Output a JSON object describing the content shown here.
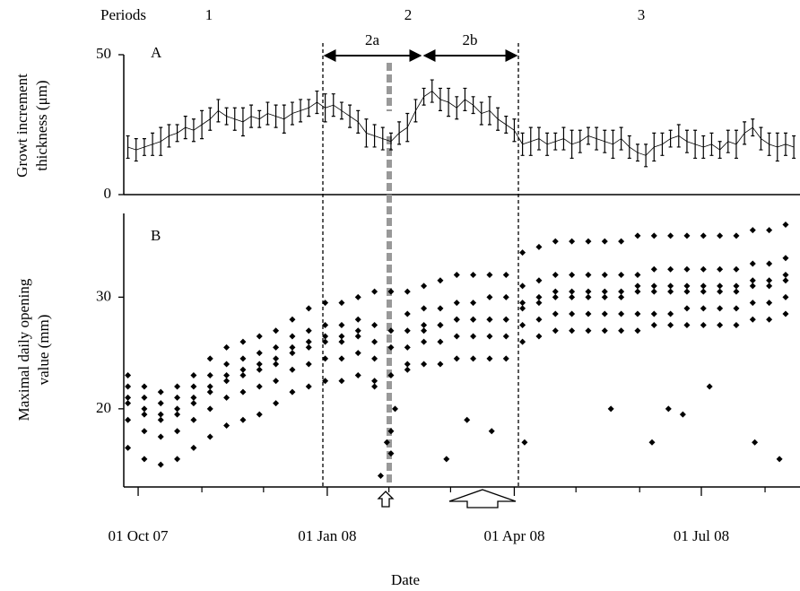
{
  "chart_data": [
    {
      "type": "errorbar",
      "panel_label": "A",
      "period_label": "Periods",
      "periods": [
        "1",
        "2",
        "3"
      ],
      "subperiods": [
        "2a",
        "2b"
      ],
      "ylabel": [
        "Growt increment",
        "thickness (μm)"
      ],
      "color": "#000000",
      "xlim": [
        -7,
        322
      ],
      "ylim": [
        0,
        50
      ],
      "yticks": [
        0,
        50
      ],
      "x": [
        -5,
        -1,
        3,
        7,
        11,
        15,
        19,
        23,
        27,
        31,
        35,
        39,
        43,
        47,
        51,
        55,
        59,
        63,
        67,
        71,
        75,
        79,
        83,
        87,
        91,
        95,
        99,
        103,
        107,
        111,
        115,
        119,
        123,
        127,
        131,
        135,
        139,
        143,
        147,
        151,
        155,
        159,
        163,
        167,
        171,
        175,
        179,
        183,
        187,
        191,
        195,
        199,
        203,
        207,
        211,
        215,
        219,
        223,
        227,
        231,
        235,
        239,
        243,
        247,
        251,
        255,
        259,
        263,
        267,
        271,
        275,
        279,
        283,
        287,
        291,
        295,
        299,
        303,
        307,
        311,
        315,
        319
      ],
      "values": [
        17,
        16,
        17,
        18,
        19,
        21,
        22,
        24,
        23,
        25,
        27,
        30,
        28,
        27,
        26,
        28,
        27,
        29,
        28,
        27,
        29,
        30,
        31,
        33,
        31,
        32,
        30,
        28,
        26,
        22,
        21,
        20,
        19,
        22,
        24,
        30,
        35,
        37,
        34,
        33,
        31,
        34,
        32,
        29,
        30,
        27,
        25,
        23,
        18,
        19,
        20,
        18,
        19,
        20,
        18,
        19,
        21,
        20,
        19,
        18,
        20,
        17,
        15,
        14,
        17,
        18,
        20,
        21,
        19,
        18,
        17,
        18,
        16,
        19,
        18,
        22,
        24,
        20,
        18,
        17,
        18,
        17
      ],
      "errors": [
        4,
        4,
        3,
        4,
        5,
        4,
        3,
        4,
        4,
        5,
        4,
        4,
        3,
        4,
        5,
        4,
        3,
        4,
        4,
        5,
        4,
        4,
        3,
        4,
        5,
        4,
        3,
        4,
        4,
        5,
        4,
        4,
        3,
        4,
        5,
        4,
        3,
        4,
        4,
        5,
        4,
        4,
        3,
        4,
        5,
        4,
        3,
        4,
        4,
        5,
        4,
        4,
        3,
        4,
        5,
        4,
        3,
        4,
        4,
        5,
        4,
        4,
        3,
        4,
        5,
        4,
        3,
        4,
        4,
        5,
        4,
        4,
        3,
        4,
        5,
        4,
        3,
        4,
        4,
        5,
        4,
        4
      ]
    },
    {
      "type": "scatter",
      "panel_label": "B",
      "ylabel": [
        "Maximal daily opening",
        "value (mm)"
      ],
      "xlabel": "Date",
      "color": "#000000",
      "xlim": [
        -7,
        322
      ],
      "ylim": [
        13,
        37.5
      ],
      "yticks": [
        20,
        30
      ],
      "xticks": [
        {
          "value": 0,
          "label": "01 Oct 07"
        },
        {
          "value": 92,
          "label": "01 Jan 08"
        },
        {
          "value": 183,
          "label": "01 Apr 08"
        },
        {
          "value": 274,
          "label": "01 Jul 08"
        }
      ],
      "xminorticks": [
        31,
        61,
        122,
        152,
        213,
        244,
        305
      ],
      "x": [
        -5,
        3,
        11,
        19,
        27,
        35,
        43,
        51,
        59,
        67,
        75,
        83,
        91,
        99,
        107,
        115,
        123,
        131,
        139,
        147,
        155,
        163,
        171,
        179,
        187,
        195,
        203,
        211,
        219,
        227,
        235,
        243,
        251,
        259,
        267,
        275,
        283,
        291,
        299,
        307,
        315
      ],
      "series": [
        {
          "values": [
            16.5,
            15.5,
            15,
            15.5,
            16.5,
            17.5,
            18.5,
            19,
            19.5,
            20.5,
            21.5,
            22,
            22.5,
            22.5,
            23,
            22.5,
            18,
            23.5,
            24,
            24,
            24.5,
            24.5,
            24.5,
            24.5,
            26,
            26.5,
            27,
            27,
            27,
            27,
            27,
            27,
            27.5,
            27.5,
            27.5,
            27.5,
            27.5,
            27.5,
            28,
            28,
            28.5
          ]
        },
        {
          "values": [
            19,
            18,
            17.5,
            18,
            19,
            20,
            21,
            21.5,
            22,
            22.5,
            23.5,
            24,
            24.5,
            24.5,
            25,
            24.5,
            23,
            25.5,
            26,
            26,
            26.5,
            26.5,
            26.5,
            26.5,
            27.5,
            28,
            28.5,
            28.5,
            28.5,
            28.5,
            28.5,
            28.5,
            28.5,
            28.5,
            29,
            29,
            29,
            29,
            29.5,
            29.5,
            30
          ]
        },
        {
          "values": [
            20.5,
            19.5,
            19,
            19.5,
            20.5,
            21.5,
            22.5,
            23,
            23.5,
            24,
            25,
            25.5,
            26,
            26,
            26.5,
            26,
            25.5,
            27,
            27.5,
            27.5,
            28,
            28,
            28,
            28,
            29,
            29.5,
            30,
            30,
            30,
            30,
            30,
            30.5,
            30.5,
            30.5,
            30.5,
            30.5,
            30.5,
            30.5,
            31,
            31,
            31.5
          ]
        },
        {
          "values": [
            22,
            21,
            20.5,
            21,
            22,
            23,
            24,
            24.5,
            25,
            25.5,
            26.5,
            27,
            27.5,
            27.5,
            28,
            27.5,
            27,
            28.5,
            29,
            29,
            29.5,
            29.5,
            30,
            30,
            31,
            31.5,
            32,
            32,
            32,
            32,
            32,
            32,
            32.5,
            32.5,
            32.5,
            32.5,
            32.5,
            32.5,
            33,
            33,
            33.5
          ]
        },
        {
          "values": [
            23,
            22,
            21.5,
            22,
            23,
            24.5,
            25.5,
            26,
            26.5,
            27,
            28,
            29,
            29.5,
            29.5,
            30,
            30.5,
            30.5,
            30.5,
            31,
            31.5,
            32,
            32,
            32,
            32,
            34,
            34.5,
            35,
            35,
            35,
            35,
            35,
            35.5,
            35.5,
            35.5,
            35.5,
            35.5,
            35.5,
            35.5,
            36,
            36,
            36.5
          ]
        },
        {
          "values": [
            21,
            20,
            19.5,
            20,
            21,
            22,
            23,
            23.5,
            24,
            24.5,
            25.5,
            26,
            26.5,
            26.5,
            27,
            22,
            16,
            24,
            27,
            27.5,
            28,
            28,
            28,
            28,
            29.5,
            30,
            30.5,
            30.5,
            30.5,
            30.5,
            30.5,
            31,
            31,
            31,
            31,
            31,
            31,
            31,
            31.5,
            31.5,
            32
          ]
        }
      ],
      "points": {
        "x": [
          118,
          121,
          125,
          150,
          160,
          172,
          188,
          230,
          250,
          258,
          265,
          278,
          300,
          312
        ],
        "y": [
          14,
          17,
          20,
          15.5,
          19,
          18,
          17,
          20,
          17,
          20,
          19.5,
          22,
          17,
          15.5
        ]
      }
    }
  ]
}
